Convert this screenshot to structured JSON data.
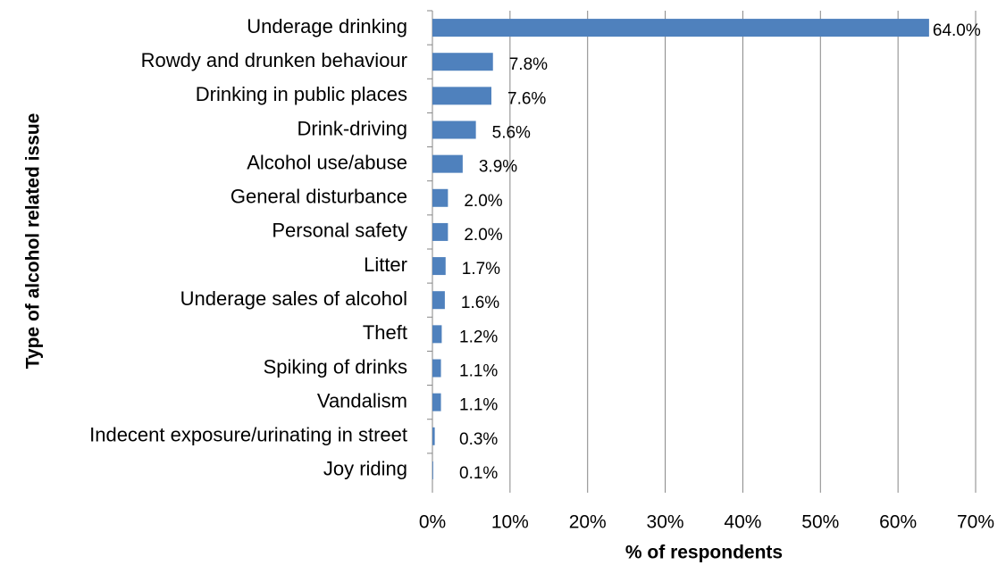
{
  "chart_data": {
    "type": "bar",
    "orientation": "horizontal",
    "x_label": "% of respondents",
    "y_label": "Type of alcohol related issue",
    "categories": [
      "Underage drinking",
      "Rowdy and drunken behaviour",
      "Drinking in public places",
      "Drink-driving",
      "Alcohol use/abuse",
      "General disturbance",
      "Personal safety",
      "Litter",
      "Underage sales of alcohol",
      "Theft",
      "Spiking of drinks",
      "Vandalism",
      "Indecent exposure/urinating in street",
      "Joy riding"
    ],
    "values": [
      64.0,
      7.8,
      7.6,
      5.6,
      3.9,
      2.0,
      2.0,
      1.7,
      1.6,
      1.2,
      1.1,
      1.1,
      0.3,
      0.1
    ],
    "value_labels": [
      "64.0%",
      "7.8%",
      "7.6%",
      "5.6%",
      "3.9%",
      "2.0%",
      "2.0%",
      "1.7%",
      "1.6%",
      "1.2%",
      "1.1%",
      "1.1%",
      "0.3%",
      "0.1%"
    ],
    "color": "#4f81bd",
    "xlim": [
      0,
      70
    ],
    "xticks": [
      {
        "value": 0,
        "label": "0%"
      },
      {
        "value": 10,
        "label": "10%"
      },
      {
        "value": 20,
        "label": "20%"
      },
      {
        "value": 30,
        "label": "30%"
      },
      {
        "value": 40,
        "label": "40%"
      },
      {
        "value": 50,
        "label": "50%"
      },
      {
        "value": 60,
        "label": "60%"
      },
      {
        "value": 70,
        "label": "70%"
      }
    ],
    "grid": true
  }
}
